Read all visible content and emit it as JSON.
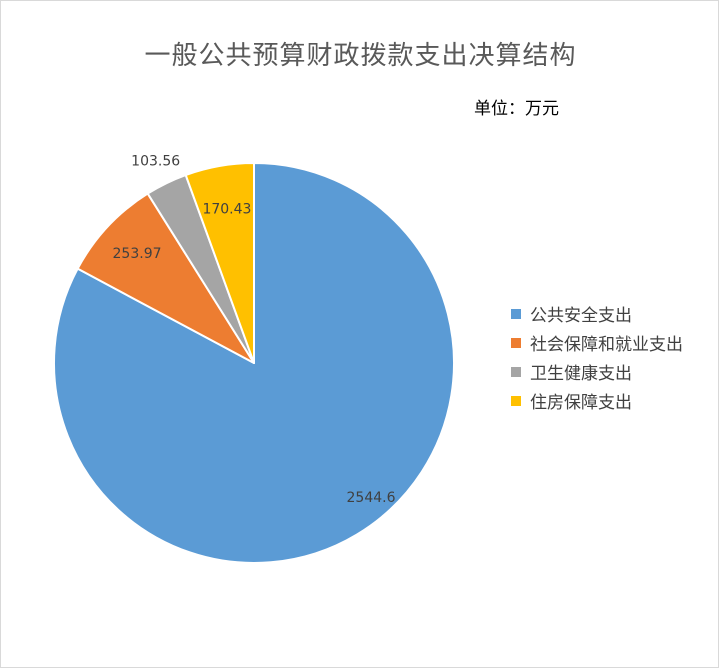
{
  "chart_data": {
    "type": "pie",
    "title": "一般公共预算财政拨款支出决算结构",
    "unit": "单位：万元",
    "legend_position": "right",
    "slices": [
      {
        "name": "公共安全支出",
        "value": 2544.6,
        "label": "2544.6",
        "color": "#5b9bd5"
      },
      {
        "name": "社会保障和就业支出",
        "value": 253.97,
        "label": "253.97",
        "color": "#ed7d31"
      },
      {
        "name": "卫生健康支出",
        "value": 103.56,
        "label": "103.56",
        "color": "#a5a5a5"
      },
      {
        "name": "住房保障支出",
        "value": 170.43,
        "label": "170.43",
        "color": "#ffc000"
      }
    ]
  }
}
